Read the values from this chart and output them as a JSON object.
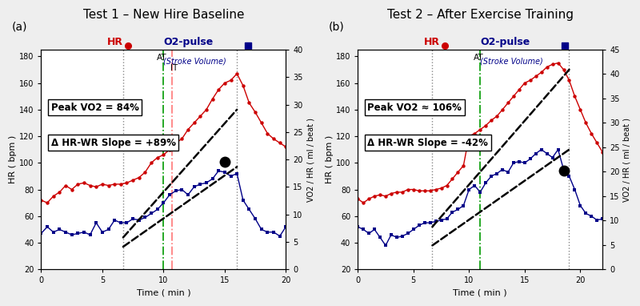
{
  "panel_a": {
    "title": "Test 1 – New Hire Baseline",
    "label": "(a)",
    "hr_x": [
      0,
      0.5,
      1,
      1.5,
      2,
      2.5,
      3,
      3.5,
      4,
      4.5,
      5,
      5.5,
      6,
      6.5,
      7,
      7.5,
      8,
      8.5,
      9,
      9.5,
      10,
      10.5,
      11,
      11.5,
      12,
      12.5,
      13,
      13.5,
      14,
      14.5,
      15,
      15.5,
      16,
      16.5,
      17,
      17.5,
      18,
      18.5,
      19,
      19.5,
      20
    ],
    "hr_y": [
      72,
      70,
      75,
      78,
      83,
      80,
      84,
      85,
      83,
      82,
      84,
      83,
      84,
      84,
      85,
      87,
      89,
      93,
      100,
      104,
      106,
      110,
      115,
      118,
      125,
      130,
      135,
      140,
      148,
      155,
      160,
      162,
      167,
      158,
      145,
      138,
      130,
      122,
      118,
      115,
      112
    ],
    "o2_x": [
      0,
      0.5,
      1,
      1.5,
      2,
      2.5,
      3,
      3.5,
      4,
      4.5,
      5,
      5.5,
      6,
      6.5,
      7,
      7.5,
      8,
      8.5,
      9,
      9.5,
      10,
      10.5,
      11,
      11.5,
      12,
      12.5,
      13,
      13.5,
      14,
      14.5,
      15,
      15.5,
      16,
      16.5,
      17,
      17.5,
      18,
      18.5,
      19,
      19.5,
      20
    ],
    "o2_y": [
      47,
      52,
      48,
      50,
      48,
      46,
      47,
      48,
      46,
      55,
      48,
      50,
      57,
      55,
      55,
      58,
      57,
      59,
      62,
      65,
      70,
      76,
      79,
      80,
      76,
      82,
      84,
      85,
      88,
      94,
      93,
      90,
      92,
      72,
      65,
      58,
      50,
      48,
      48,
      45,
      52
    ],
    "vline1_x": 6.7,
    "vline1_color": "#888888",
    "at_x": 10.0,
    "at_color": "#009900",
    "it_x": 10.7,
    "it_color": "#ff7777",
    "vline4_x": 16.0,
    "vline4_color": "#888888",
    "dashed_line1_x": [
      6.7,
      16.0
    ],
    "dashed_line1_y": [
      44,
      140
    ],
    "dashed_line2_x": [
      6.7,
      16.0
    ],
    "dashed_line2_y": [
      37,
      97
    ],
    "black_dot_x": 15.0,
    "black_dot_y": 101,
    "annotation1": "Peak VO2 = 84%",
    "annotation2": "Δ HR-WR Slope = +89%",
    "xlim": [
      0,
      20
    ],
    "ylim_left": [
      20,
      185
    ],
    "ylim_right": [
      0,
      40
    ],
    "yticks_left": [
      20,
      40,
      60,
      80,
      100,
      120,
      140,
      160,
      180
    ],
    "yticks_right": [
      0,
      5,
      10,
      15,
      20,
      25,
      30,
      35,
      40
    ],
    "xticks": [
      0,
      5,
      10,
      15,
      20
    ],
    "at_label": "AT",
    "it_label": "IT",
    "has_it": true
  },
  "panel_b": {
    "title": "Test 2 – After Exercise Training",
    "label": "(b)",
    "hr_x": [
      0,
      0.5,
      1,
      1.5,
      2,
      2.5,
      3,
      3.5,
      4,
      4.5,
      5,
      5.5,
      6,
      6.5,
      7,
      7.5,
      8,
      8.5,
      9,
      9.5,
      10,
      10.5,
      11,
      11.5,
      12,
      12.5,
      13,
      13.5,
      14,
      14.5,
      15,
      15.5,
      16,
      16.5,
      17,
      17.5,
      18,
      18.5,
      19,
      19.5,
      20,
      20.5,
      21,
      21.5,
      22
    ],
    "hr_y": [
      73,
      70,
      73,
      75,
      76,
      75,
      77,
      78,
      78,
      80,
      80,
      79,
      79,
      79,
      80,
      81,
      83,
      88,
      93,
      98,
      120,
      122,
      125,
      128,
      132,
      135,
      140,
      145,
      150,
      155,
      160,
      162,
      165,
      168,
      172,
      174,
      175,
      170,
      162,
      150,
      140,
      130,
      122,
      115,
      108
    ],
    "o2_x": [
      0,
      0.5,
      1,
      1.5,
      2,
      2.5,
      3,
      3.5,
      4,
      4.5,
      5,
      5.5,
      6,
      6.5,
      7,
      7.5,
      8,
      8.5,
      9,
      9.5,
      10,
      10.5,
      11,
      11.5,
      12,
      12.5,
      13,
      13.5,
      14,
      14.5,
      15,
      15.5,
      16,
      16.5,
      17,
      17.5,
      18,
      18.5,
      19,
      19.5,
      20,
      20.5,
      21,
      21.5,
      22
    ],
    "o2_y": [
      52,
      50,
      47,
      50,
      44,
      38,
      46,
      44,
      45,
      47,
      50,
      53,
      55,
      55,
      56,
      57,
      58,
      63,
      65,
      68,
      80,
      83,
      78,
      85,
      90,
      92,
      95,
      93,
      100,
      101,
      100,
      103,
      107,
      110,
      107,
      104,
      110,
      95,
      90,
      80,
      68,
      62,
      60,
      57,
      58
    ],
    "vline1_x": 6.7,
    "vline1_color": "#888888",
    "at_x": 11.0,
    "at_color": "#009900",
    "vline4_x": 19.0,
    "vline4_color": "#888888",
    "dashed_line1_x": [
      6.7,
      19.0
    ],
    "dashed_line1_y": [
      52,
      170
    ],
    "dashed_line2_x": [
      6.7,
      19.0
    ],
    "dashed_line2_y": [
      38,
      110
    ],
    "black_dot_x": 18.5,
    "black_dot_y": 94,
    "annotation1": "Peak VO2 ≈ 106%",
    "annotation2": "Δ HR-WR Slope = -42%",
    "xlim": [
      0,
      22
    ],
    "ylim_left": [
      20,
      185
    ],
    "ylim_right": [
      0,
      45
    ],
    "yticks_left": [
      20,
      40,
      60,
      80,
      100,
      120,
      140,
      160,
      180
    ],
    "yticks_right": [
      0,
      5,
      10,
      15,
      20,
      25,
      30,
      35,
      40,
      45
    ],
    "xticks": [
      0,
      5,
      10,
      15,
      20
    ],
    "at_label": "AT",
    "has_it": false
  },
  "hr_color": "#cc0000",
  "o2_color": "#000088",
  "background_color": "#eeeeee",
  "panel_bg": "#ffffff"
}
